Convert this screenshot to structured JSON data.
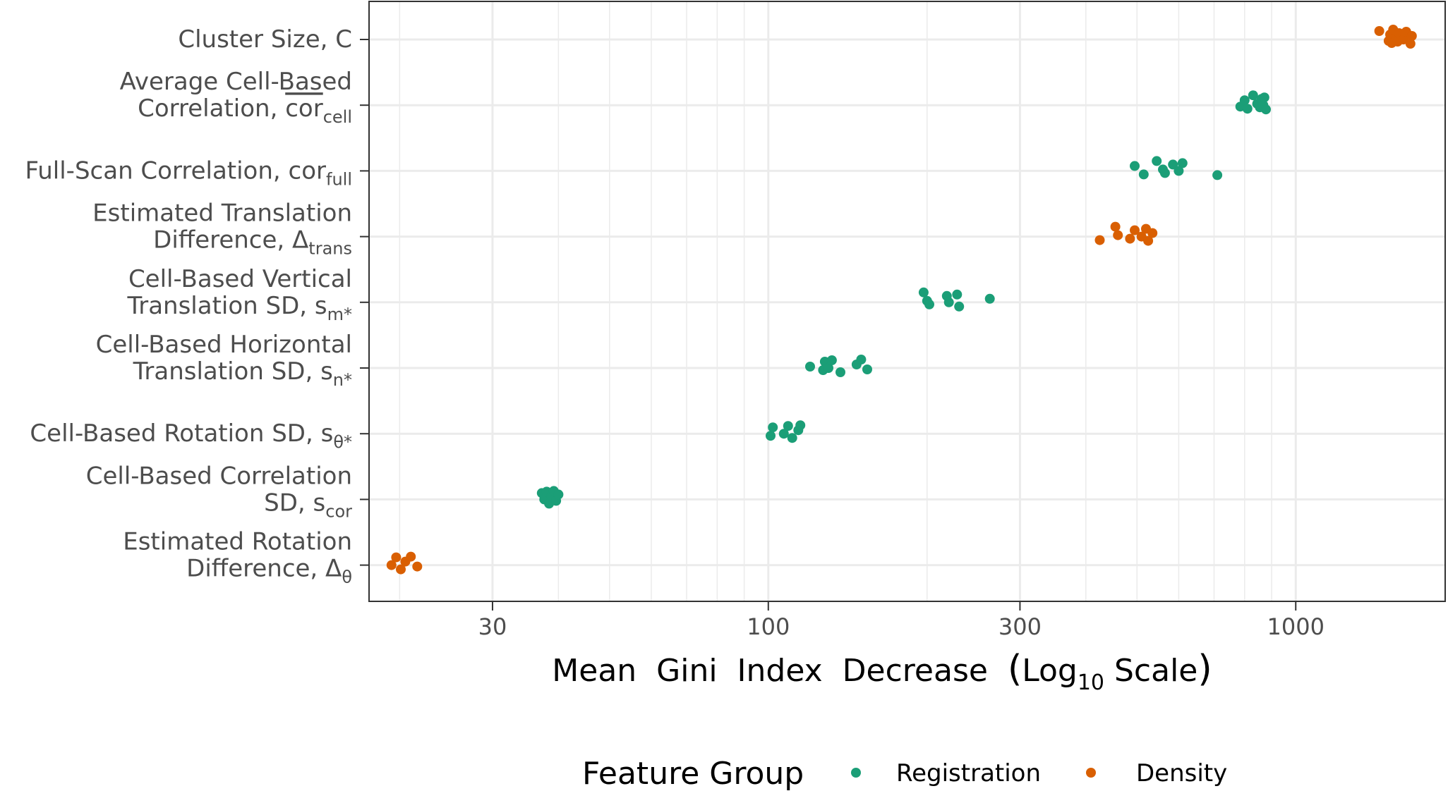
{
  "chart_data": {
    "type": "scatter",
    "x_scale": "log10",
    "xlim": [
      17.5,
      1920
    ],
    "x_ticks": [
      {
        "value": 30,
        "label": "30"
      },
      {
        "value": 100,
        "label": "100"
      },
      {
        "value": 300,
        "label": "300"
      },
      {
        "value": 1000,
        "label": "1000"
      }
    ],
    "x_minor_gridlines": [
      20,
      40,
      50,
      60,
      70,
      80,
      90,
      200,
      400,
      500,
      600,
      700,
      800,
      900
    ],
    "xlabel": {
      "text": "Mean  Gini  Index  Decrease  ",
      "log_open": "(",
      "log_word": "Log",
      "log_sub": "10",
      "log_rest": " Scale",
      "log_close": ")"
    },
    "grid": true,
    "legend": {
      "title": "Feature Group",
      "position": "bottom",
      "entries": [
        {
          "name": "Registration",
          "color": "#1b9e77"
        },
        {
          "name": "Density",
          "color": "#d95f02"
        }
      ]
    },
    "features": [
      {
        "label_lines": [
          [
            {
              "t": "Cluster Size,  C"
            }
          ]
        ],
        "group": "Density",
        "x": [
          1440,
          1500,
          1510,
          1520,
          1530,
          1550,
          1560,
          1570,
          1600,
          1620,
          1650,
          1660
        ]
      },
      {
        "label_lines": [
          [
            {
              "t": "Average Cell-Based "
            }
          ],
          [
            {
              "t": "Correlation,  "
            },
            {
              "t": "cor",
              "over": true
            },
            {
              "t": "cell",
              "sub": true
            }
          ]
        ],
        "group": "Registration",
        "x": [
          785,
          800,
          810,
          830,
          845,
          855,
          862,
          868,
          872,
          878
        ]
      },
      {
        "label_lines": [
          [
            {
              "t": "Full-Scan Correlation,  cor"
            },
            {
              "t": "full",
              "sub": true
            }
          ]
        ],
        "group": "Registration",
        "x": [
          495,
          515,
          545,
          560,
          565,
          585,
          600,
          610,
          710
        ]
      },
      {
        "label_lines": [
          [
            {
              "t": "Estimated Translation "
            }
          ],
          [
            {
              "t": "Difference,  Δ"
            },
            {
              "t": "trans",
              "sub": true
            }
          ]
        ],
        "group": "Density",
        "x": [
          425,
          455,
          460,
          485,
          495,
          510,
          520,
          525,
          535
        ]
      },
      {
        "label_lines": [
          [
            {
              "t": "Cell-Based Vertical "
            }
          ],
          [
            {
              "t": "Translation SD,  s"
            },
            {
              "t": "m*",
              "sub": true
            }
          ]
        ],
        "group": "Registration",
        "x": [
          197,
          200,
          202,
          218,
          220,
          228,
          230,
          263
        ]
      },
      {
        "label_lines": [
          [
            {
              "t": "Cell-Based Horizontal "
            }
          ],
          [
            {
              "t": "Translation SD,  s"
            },
            {
              "t": "n*",
              "sub": true
            }
          ]
        ],
        "group": "Registration",
        "x": [
          120,
          127,
          128,
          130,
          132,
          137,
          147,
          150,
          154
        ]
      },
      {
        "label_lines": [
          [
            {
              "t": "Cell-Based Rotation SD,  s"
            },
            {
              "t": "θ*",
              "sub": true
            }
          ]
        ],
        "group": "Registration",
        "x": [
          101,
          102,
          107,
          109,
          111,
          114,
          115
        ]
      },
      {
        "label_lines": [
          [
            {
              "t": "Cell-Based Correlation "
            }
          ],
          [
            {
              "t": "SD,  s"
            },
            {
              "t": "cor",
              "sub": true
            }
          ]
        ],
        "group": "Registration",
        "x": [
          37.2,
          37.6,
          38.0,
          38.4,
          38.8,
          39.2,
          39.6,
          40.0
        ]
      },
      {
        "label_lines": [
          [
            {
              "t": "Estimated Rotation "
            }
          ],
          [
            {
              "t": "Difference,  Δ"
            },
            {
              "t": "θ",
              "sub": true
            }
          ]
        ],
        "group": "Density",
        "x": [
          19.3,
          19.7,
          20.1,
          20.5,
          21.0,
          21.6
        ]
      }
    ]
  }
}
